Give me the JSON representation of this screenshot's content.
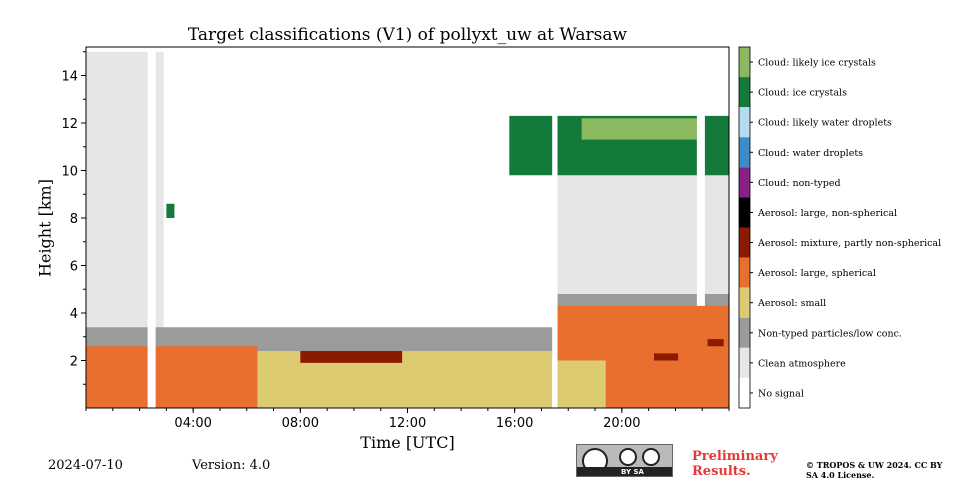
{
  "header": {
    "title": "Target classifications (V1) of pollyxt_uw at Warsaw"
  },
  "footer": {
    "date": "2024-07-10",
    "version": "Version: 4.0",
    "preliminary": "Preliminary Results.",
    "copyright": "© TROPOS & UW 2024. CC BY SA 4.0 License.",
    "license_badge": "BY SA"
  },
  "colors": {
    "no_signal": "#ffffff",
    "clean": "#e6e6e6",
    "non_typed": "#9b9b9b",
    "small": "#dccb70",
    "large_spherical": "#e86f2e",
    "mixture": "#8b1a00",
    "large_non_spherical": "#000000",
    "cloud_non_typed": "#8a1f85",
    "water_droplets": "#3d8bc8",
    "likely_water": "#b6daf2",
    "ice": "#147a3c",
    "likely_ice": "#8cb85f"
  },
  "chart_data": {
    "type": "heatmap",
    "title": "Target classifications (V1) of pollyxt_uw at Warsaw",
    "xlabel": "Time [UTC]",
    "ylabel": "Height [km]",
    "xlim_hours": [
      0,
      24
    ],
    "ylim_km": [
      0,
      15.2
    ],
    "xticks": [
      "04:00",
      "08:00",
      "12:00",
      "16:00",
      "20:00"
    ],
    "yticks": [
      2,
      4,
      6,
      8,
      10,
      12,
      14
    ],
    "classes": [
      "Cloud: likely ice crystals",
      "Cloud: ice crystals",
      "Cloud: likely water droplets",
      "Cloud: water droplets",
      "Cloud: non-typed",
      "Aerosol: large, non-spherical",
      "Aerosol: mixture, partly non-spherical",
      "Aerosol: large, spherical",
      "Aerosol: small",
      "Non-typed particles/low conc.",
      "Clean atmosphere",
      "No signal"
    ],
    "class_colors": [
      "#8cb85f",
      "#147a3c",
      "#b6daf2",
      "#3d8bc8",
      "#8a1f85",
      "#000000",
      "#8b1a00",
      "#e86f2e",
      "#dccb70",
      "#9b9b9b",
      "#e6e6e6",
      "#ffffff"
    ],
    "regions": [
      {
        "class": "Clean atmosphere",
        "hours": [
          0.0,
          2.9
        ],
        "km": [
          2.2,
          15.0
        ]
      },
      {
        "class": "Clean atmosphere",
        "hours": [
          17.6,
          24.0
        ],
        "km": [
          4.5,
          11.2
        ]
      },
      {
        "class": "Non-typed particles/low conc.",
        "hours": [
          0.0,
          24.0
        ],
        "km": [
          2.2,
          3.4
        ]
      },
      {
        "class": "Non-typed particles/low conc.",
        "hours": [
          17.6,
          24.0
        ],
        "km": [
          3.9,
          4.8
        ]
      },
      {
        "class": "Aerosol: large, spherical",
        "hours": [
          0.0,
          6.4
        ],
        "km": [
          0.0,
          2.6
        ]
      },
      {
        "class": "Aerosol: small",
        "hours": [
          6.4,
          17.4
        ],
        "km": [
          0.0,
          2.4
        ]
      },
      {
        "class": "Aerosol: large, spherical",
        "hours": [
          17.6,
          24.0
        ],
        "km": [
          0.0,
          4.3
        ]
      },
      {
        "class": "Aerosol: small",
        "hours": [
          17.6,
          19.4
        ],
        "km": [
          0.0,
          2.0
        ]
      },
      {
        "class": "Aerosol: mixture, partly non-spherical",
        "hours": [
          8.0,
          11.8
        ],
        "km": [
          1.9,
          2.4
        ]
      },
      {
        "class": "Aerosol: mixture, partly non-spherical",
        "hours": [
          21.2,
          22.1
        ],
        "km": [
          2.0,
          2.3
        ]
      },
      {
        "class": "Aerosol: mixture, partly non-spherical",
        "hours": [
          23.2,
          23.8
        ],
        "km": [
          2.6,
          2.9
        ]
      },
      {
        "class": "Cloud: ice crystals",
        "hours": [
          15.8,
          24.0
        ],
        "km": [
          9.8,
          12.3
        ]
      },
      {
        "class": "Cloud: likely ice crystals",
        "hours": [
          18.5,
          22.8
        ],
        "km": [
          11.3,
          12.2
        ]
      },
      {
        "class": "Cloud: ice crystals",
        "hours": [
          3.0,
          3.3
        ],
        "km": [
          8.0,
          8.6
        ]
      },
      {
        "class": "No signal",
        "hours": [
          17.4,
          17.6
        ],
        "km": [
          0.0,
          15.2
        ]
      },
      {
        "class": "No signal",
        "hours": [
          2.3,
          2.6
        ],
        "km": [
          0.0,
          15.2
        ]
      },
      {
        "class": "No signal",
        "hours": [
          22.8,
          23.1
        ],
        "km": [
          4.3,
          15.2
        ]
      }
    ]
  }
}
